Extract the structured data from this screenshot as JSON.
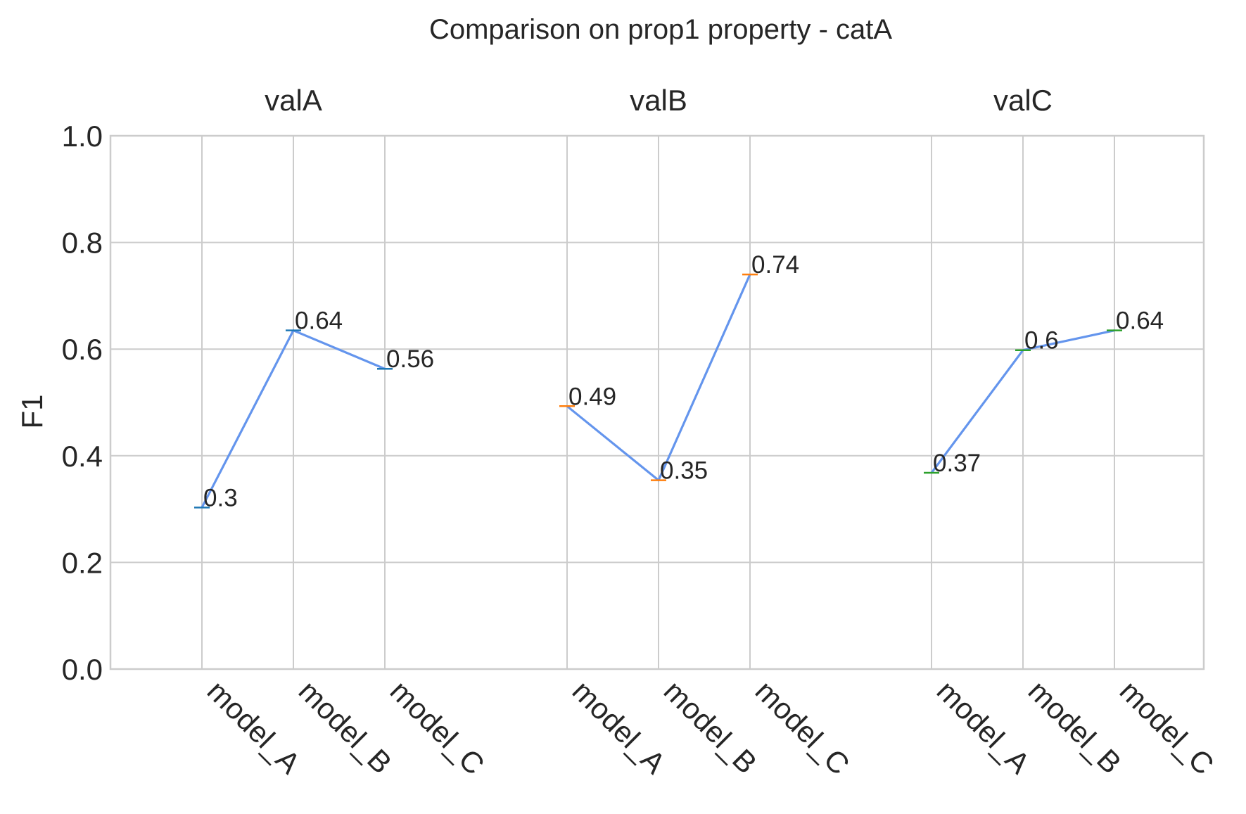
{
  "chart_data": {
    "type": "line",
    "title": "Comparison on prop1 property - catA",
    "ylabel": "F1",
    "xlabel": "",
    "ylim": [
      0.0,
      1.0
    ],
    "yticks": [
      "0.0",
      "0.2",
      "0.4",
      "0.6",
      "0.8",
      "1.0"
    ],
    "grid": true,
    "line_color": "#6495ED",
    "groups": [
      {
        "label": "valA",
        "categories": [
          "model_A",
          "model_B",
          "model_C"
        ],
        "values": [
          0.303,
          0.635,
          0.563
        ],
        "labels": [
          "0.3",
          "0.64",
          "0.56"
        ],
        "marker_color": "#1f77b4"
      },
      {
        "label": "valB",
        "categories": [
          "model_A",
          "model_B",
          "model_C"
        ],
        "values": [
          0.493,
          0.354,
          0.74
        ],
        "labels": [
          "0.49",
          "0.35",
          "0.74"
        ],
        "marker_color": "#ff7f0e"
      },
      {
        "label": "valC",
        "categories": [
          "model_A",
          "model_B",
          "model_C"
        ],
        "values": [
          0.368,
          0.598,
          0.635
        ],
        "labels": [
          "0.37",
          "0.6",
          "0.64"
        ],
        "marker_color": "#2ca02c"
      }
    ]
  }
}
